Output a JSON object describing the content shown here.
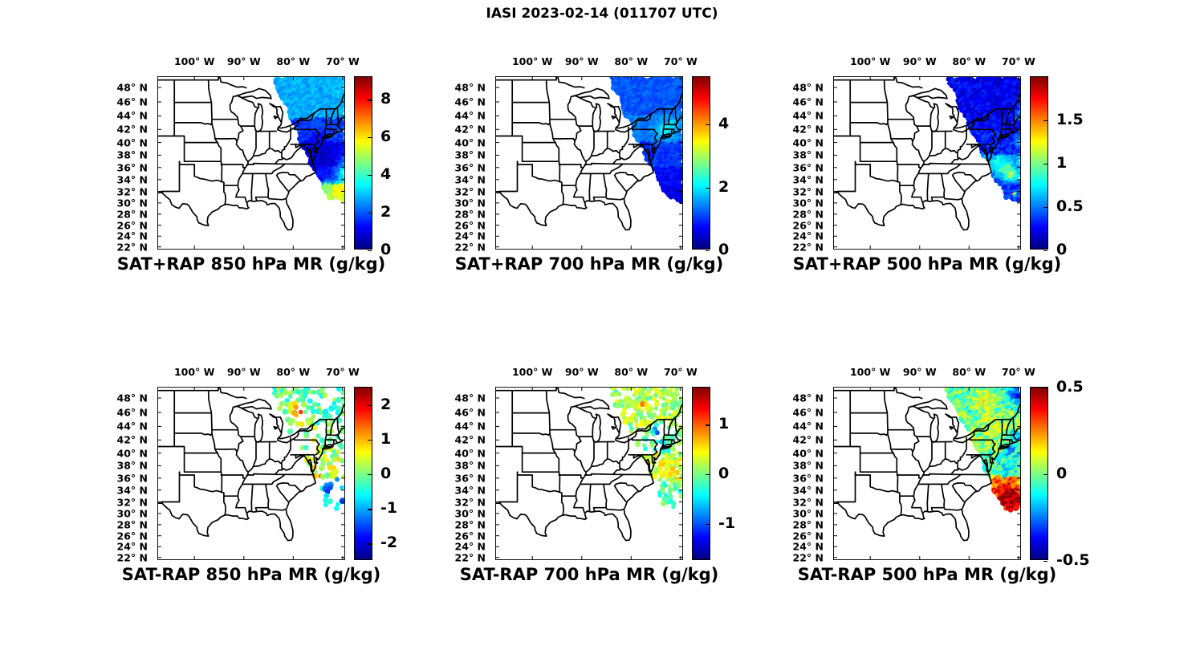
{
  "figure_title": "IASI 2023-02-14 (011707 UTC)",
  "axes": {
    "lon_ticks": [
      {
        "value": -100,
        "label": "100° W"
      },
      {
        "value": -90,
        "label": "90° W"
      },
      {
        "value": -80,
        "label": "80° W"
      },
      {
        "value": -70,
        "label": "70° W"
      }
    ],
    "lat_ticks": [
      {
        "value": 48,
        "label": "48° N"
      },
      {
        "value": 46,
        "label": "46° N"
      },
      {
        "value": 44,
        "label": "44° N"
      },
      {
        "value": 42,
        "label": "42° N"
      },
      {
        "value": 40,
        "label": "40° N"
      },
      {
        "value": 38,
        "label": "38° N"
      },
      {
        "value": 36,
        "label": "36° N"
      },
      {
        "value": 34,
        "label": "34° N"
      },
      {
        "value": 32,
        "label": "32° N"
      },
      {
        "value": 30,
        "label": "30° N"
      },
      {
        "value": 28,
        "label": "28° N"
      },
      {
        "value": 26,
        "label": "26° N"
      },
      {
        "value": 24,
        "label": "24° N"
      },
      {
        "value": 22,
        "label": "22° N"
      }
    ]
  },
  "chart_data": {
    "type": "scatter",
    "subtype": "geographic-swath-maps",
    "projection": "mercator",
    "lon_range": [
      -107.5,
      -69.5
    ],
    "lat_range": [
      21.5,
      49.5
    ],
    "colormap": "jet",
    "swath_geometry": {
      "left_edge": [
        [
          -84.4,
          49.5
        ],
        [
          -72.6,
          31.0
        ]
      ],
      "bottom_edge": [
        [
          -72.6,
          31.0
        ],
        [
          -69.5,
          30.3
        ]
      ]
    },
    "panels": [
      {
        "id": "sat-plus-rap-850",
        "title": "SAT+RAP 850 hPa MR (g/kg)",
        "units": "g/kg",
        "colorbar": {
          "vmin": 0,
          "vmax": 9.2,
          "tick_values": [
            0,
            2,
            4,
            6,
            8
          ],
          "tick_labels": [
            "0",
            "2",
            "4",
            "6",
            "8"
          ]
        },
        "swath": {
          "spacing": 3.1,
          "dot_r": 3.0,
          "noise": 0.35,
          "lat_bands": [
            [
              43.5,
              90,
              2.7
            ],
            [
              40,
              43.5,
              1.7
            ],
            [
              36,
              40,
              1.0
            ],
            [
              33.2,
              36,
              1.3
            ],
            [
              -90,
              33.2,
              5.0
            ]
          ],
          "density_bands": [
            [
              -90,
              90,
              1
            ]
          ],
          "blobs": [
            [
              -69.0,
              35.0,
              1.6,
              4.6
            ],
            [
              -68.6,
              37.5,
              1.1,
              4.2
            ],
            [
              -70.5,
              32.3,
              1.3,
              6.0
            ],
            [
              -73.2,
              32.5,
              1.0,
              4.6
            ],
            [
              -73.6,
              37.6,
              1.8,
              0.6
            ],
            [
              -75.2,
              40.2,
              1.4,
              1.1
            ],
            [
              -70.0,
              47.5,
              1.5,
              3.0
            ]
          ]
        }
      },
      {
        "id": "sat-plus-rap-700",
        "title": "SAT+RAP 700 hPa MR (g/kg)",
        "units": "g/kg",
        "colorbar": {
          "vmin": 0,
          "vmax": 5.5,
          "tick_values": [
            0,
            2,
            4
          ],
          "tick_labels": [
            "0",
            "2",
            "4"
          ]
        },
        "swath": {
          "spacing": 3.1,
          "dot_r": 3.0,
          "noise": 0.18,
          "lat_bands": [
            [
              44,
              90,
              1.15
            ],
            [
              40,
              44,
              1.35
            ],
            [
              36,
              40,
              0.95
            ],
            [
              33,
              36,
              0.7
            ],
            [
              -90,
              33,
              0.55
            ]
          ],
          "density_bands": [
            [
              -90,
              90,
              1
            ]
          ],
          "blobs": [
            [
              -73.3,
              41.6,
              1.4,
              2.1
            ],
            [
              -71.5,
              42.5,
              1.2,
              1.9
            ],
            [
              -70.3,
              43.8,
              0.9,
              1.5
            ],
            [
              -74.8,
              40.3,
              0.8,
              1.6
            ],
            [
              -69.5,
              41.0,
              1.0,
              1.4
            ]
          ]
        }
      },
      {
        "id": "sat-plus-rap-500",
        "title": "SAT+RAP 500 hPa MR (g/kg)",
        "units": "g/kg",
        "colorbar": {
          "vmin": 0,
          "vmax": 2.0,
          "tick_values": [
            0,
            0.5,
            1,
            1.5
          ],
          "tick_labels": [
            "0",
            "0.5",
            "1",
            "1.5"
          ]
        },
        "swath": {
          "spacing": 3.1,
          "dot_r": 3.0,
          "noise": 0.12,
          "lat_bands": [
            [
              42,
              90,
              0.22
            ],
            [
              38,
              42,
              0.3
            ],
            [
              35,
              38,
              0.55
            ],
            [
              33,
              35,
              0.45
            ],
            [
              -90,
              33,
              0.32
            ]
          ],
          "density_bands": [
            [
              -90,
              90,
              1
            ]
          ],
          "blobs": [
            [
              -69.2,
              44.0,
              1.3,
              0.6
            ],
            [
              -69.0,
              40.0,
              1.0,
              0.8
            ],
            [
              -72.8,
              35.8,
              1.3,
              0.95
            ],
            [
              -71.5,
              34.6,
              1.0,
              1.15
            ],
            [
              -74.3,
              36.9,
              0.8,
              0.8
            ],
            [
              -70.9,
              31.4,
              0.35,
              1.9
            ]
          ]
        }
      },
      {
        "id": "sat-minus-rap-850",
        "title": "SAT-RAP 850 hPa MR (g/kg)",
        "units": "g/kg",
        "colorbar": {
          "vmin": -2.5,
          "vmax": 2.5,
          "tick_values": [
            -2,
            -1,
            0,
            1,
            2
          ],
          "tick_labels": [
            "-2",
            "-1",
            "0",
            "1",
            "2"
          ]
        },
        "swath": {
          "spacing": 5.0,
          "dot_r": 3.3,
          "noise": 0.5,
          "lat_bands": [
            [
              44,
              90,
              -0.2
            ],
            [
              40,
              44,
              0.1
            ],
            [
              36,
              40,
              0.35
            ],
            [
              -90,
              36,
              -0.6
            ]
          ],
          "density_bands": [
            [
              44,
              90,
              0.5
            ],
            [
              41,
              44,
              0.18
            ],
            [
              36,
              41,
              0.5
            ],
            [
              33,
              36,
              0.3
            ],
            [
              -90,
              33,
              0.28
            ]
          ],
          "blobs": [
            [
              -79.0,
              46.5,
              1.1,
              1.8
            ],
            [
              -77.8,
              44.5,
              0.7,
              1.3
            ],
            [
              -76.2,
              41.5,
              0.5,
              2.2
            ],
            [
              -74.0,
              38.5,
              1.5,
              0.5
            ],
            [
              -71.8,
              34.3,
              1.3,
              -2.2
            ],
            [
              -70.8,
              33.0,
              1.2,
              -2.4
            ],
            [
              -74.6,
              36.6,
              0.9,
              0.9
            ]
          ]
        }
      },
      {
        "id": "sat-minus-rap-700",
        "title": "SAT-RAP 700 hPa MR (g/kg)",
        "units": "g/kg",
        "colorbar": {
          "vmin": -1.75,
          "vmax": 1.75,
          "tick_values": [
            -1,
            0,
            1
          ],
          "tick_labels": [
            "-1",
            "0",
            "1"
          ]
        },
        "swath": {
          "spacing": 4.2,
          "dot_r": 3.0,
          "noise": 0.3,
          "lat_bands": [
            [
              44,
              90,
              0.15
            ],
            [
              40,
              44,
              -0.1
            ],
            [
              36,
              40,
              0.25
            ],
            [
              -90,
              36,
              -0.15
            ]
          ],
          "density_bands": [
            [
              44,
              90,
              0.65
            ],
            [
              40,
              44,
              0.4
            ],
            [
              33,
              40,
              0.65
            ],
            [
              -90,
              33,
              0.4
            ]
          ],
          "blobs": [
            [
              -77.5,
              46.8,
              0.55,
              1.0
            ],
            [
              -74.6,
              43.2,
              1.0,
              -1.0
            ],
            [
              -73.3,
              41.3,
              0.8,
              -0.9
            ],
            [
              -72.4,
              37.5,
              1.2,
              0.55
            ],
            [
              -70.4,
              36.0,
              1.0,
              0.5
            ],
            [
              -74.8,
              39.3,
              0.8,
              0.5
            ]
          ]
        }
      },
      {
        "id": "sat-minus-rap-500",
        "title": "SAT-RAP 500 hPa MR (g/kg)",
        "units": "g/kg",
        "colorbar": {
          "vmin": -0.5,
          "vmax": 0.5,
          "tick_values": [
            -0.5,
            0,
            0.5
          ],
          "tick_labels": [
            "-0.5",
            "0",
            "0.5"
          ]
        },
        "swath": {
          "spacing": 3.1,
          "dot_r": 3.0,
          "noise": 0.12,
          "lat_bands": [
            [
              46,
              90,
              -0.05
            ],
            [
              40,
              46,
              0.02
            ],
            [
              36,
              40,
              -0.08
            ],
            [
              33,
              36,
              0.3
            ],
            [
              -90,
              33,
              0.42
            ]
          ],
          "density_bands": [
            [
              -90,
              90,
              1
            ]
          ],
          "blobs": [
            [
              -70.3,
              48.6,
              1.4,
              -0.3
            ],
            [
              -68.6,
              46.0,
              1.2,
              -0.27
            ],
            [
              -77.0,
              47.5,
              1.8,
              0.1
            ],
            [
              -74.6,
              43.5,
              1.5,
              0.08
            ],
            [
              -70.4,
              42.5,
              0.9,
              -0.26
            ],
            [
              -71.4,
              40.4,
              1.0,
              -0.22
            ],
            [
              -72.0,
              33.2,
              1.4,
              0.52
            ],
            [
              -70.6,
              32.3,
              1.2,
              0.5
            ],
            [
              -73.2,
              34.4,
              0.8,
              0.38
            ],
            [
              -74.3,
              35.7,
              0.7,
              0.32
            ],
            [
              -69.2,
              35.5,
              0.9,
              0.15
            ]
          ]
        }
      }
    ]
  }
}
